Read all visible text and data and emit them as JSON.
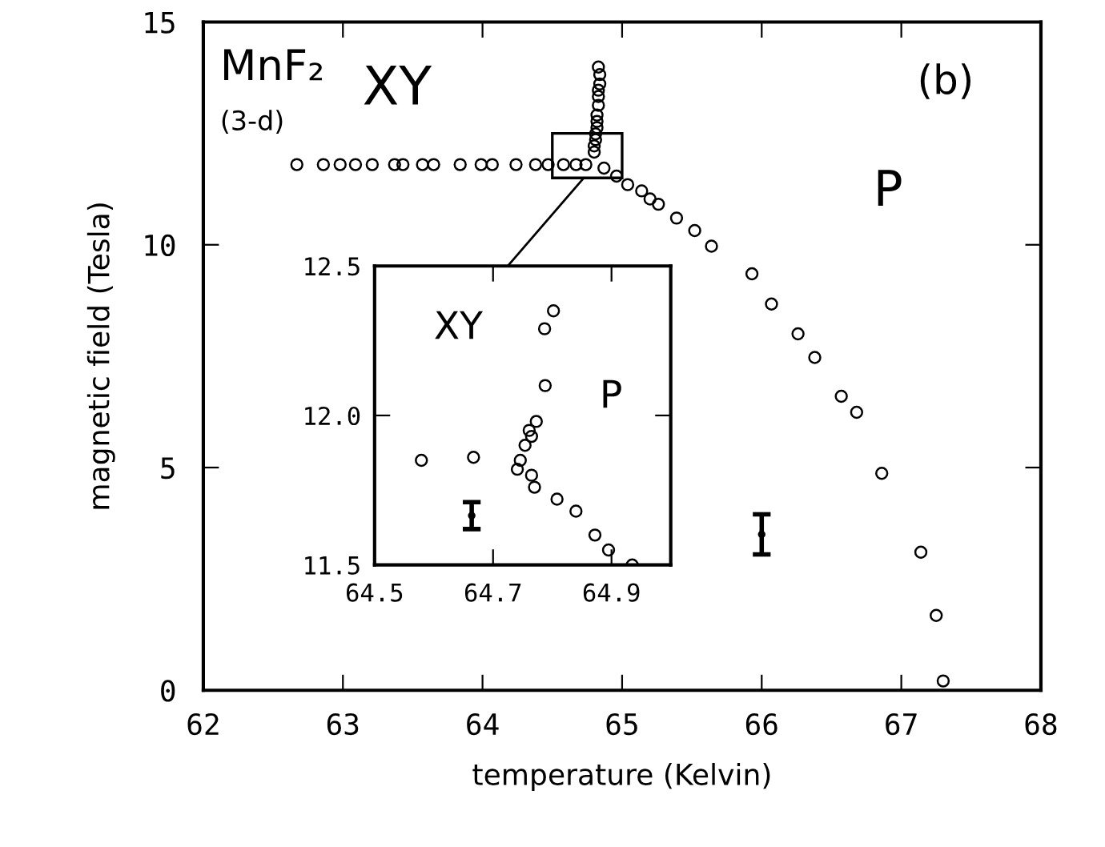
{
  "chart_data": [
    {
      "type": "scatter",
      "xlabel": "temperature (Kelvin)",
      "ylabel": "magnetic field (Tesla)",
      "xlim": [
        62,
        68
      ],
      "xticks": [
        62,
        63,
        64,
        65,
        66,
        67,
        68
      ],
      "ylim": [
        0,
        15
      ],
      "yticks": [
        0,
        5,
        10,
        15
      ],
      "marker": "circle",
      "grid": false,
      "legend": false,
      "annotations": [
        "MnF₂",
        "(3-d)",
        "XY",
        "P",
        "(b)"
      ],
      "series": [
        {
          "color": "#000000",
          "x": [
            62.67,
            62.86,
            62.98,
            63.09,
            63.21,
            63.37,
            63.43,
            63.57,
            63.65,
            63.84,
            63.99,
            64.07,
            64.24,
            64.38,
            64.47,
            64.58,
            64.67,
            64.74,
            64.83,
            64.84,
            64.84,
            64.83,
            64.83,
            64.83,
            64.82,
            64.82,
            64.82,
            64.81,
            64.81,
            64.8,
            64.8,
            64.87,
            64.96,
            65.04,
            65.14,
            65.2,
            65.26,
            65.39,
            65.52,
            65.64,
            65.93,
            66.07,
            66.26,
            66.38,
            66.57,
            66.68,
            66.86,
            67.14,
            67.25,
            67.3
          ],
          "values": [
            11.8,
            11.8,
            11.8,
            11.8,
            11.8,
            11.8,
            11.8,
            11.8,
            11.8,
            11.8,
            11.8,
            11.8,
            11.8,
            11.8,
            11.8,
            11.8,
            11.8,
            11.8,
            13.99,
            13.82,
            13.61,
            13.47,
            13.33,
            13.13,
            12.91,
            12.77,
            12.63,
            12.49,
            12.36,
            12.22,
            12.08,
            11.72,
            11.54,
            11.35,
            11.21,
            11.03,
            10.91,
            10.6,
            10.32,
            9.97,
            9.35,
            8.67,
            8.0,
            7.47,
            6.6,
            6.24,
            4.87,
            3.1,
            1.68,
            0.21
          ]
        },
        {
          "color": "#000000",
          "x": [
            66
          ],
          "values": [
            3.5
          ],
          "errors": [
            0.45
          ]
        }
      ]
    },
    {
      "type": "scatter",
      "xlim": [
        64.5,
        65.0
      ],
      "xticks": [
        64.5,
        64.7,
        64.9
      ],
      "ylim": [
        11.5,
        12.5
      ],
      "yticks": [
        11.5,
        {
          "value": 12,
          "label": "12.0"
        },
        12.5
      ],
      "marker": "circle",
      "grid": false,
      "legend": false,
      "annotations": [
        "XY",
        "P"
      ],
      "series": [
        {
          "color": "#000000",
          "x": [
            64.579,
            64.667,
            64.802,
            64.787,
            64.788,
            64.773,
            64.761,
            64.765,
            64.754,
            64.746,
            64.741,
            64.765,
            64.77,
            64.808,
            64.84,
            64.872,
            64.895,
            64.935
          ],
          "values": [
            11.85,
            11.86,
            12.35,
            12.29,
            12.1,
            11.98,
            11.95,
            11.93,
            11.9,
            11.85,
            11.82,
            11.8,
            11.76,
            11.72,
            11.68,
            11.6,
            11.55,
            11.5
          ]
        },
        {
          "color": "#000000",
          "x": [
            64.664
          ],
          "values": [
            11.665
          ],
          "errors": [
            0.045
          ]
        }
      ]
    }
  ]
}
